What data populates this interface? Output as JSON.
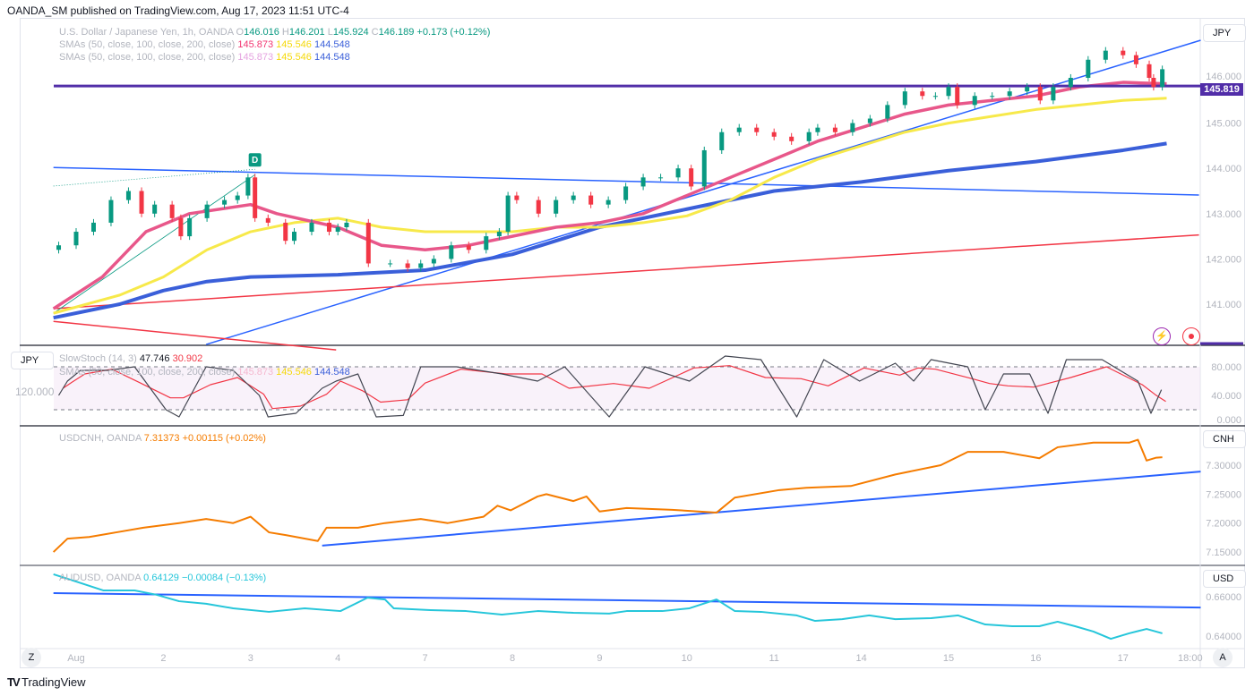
{
  "header": {
    "published": "OANDA_SM published on TradingView.com, Aug 17, 2023 11:51 UTC-4"
  },
  "main_legend": {
    "symbol": "U.S. Dollar / Japanese Yen, 1h, OANDA",
    "o_label": "O",
    "o": "146.016",
    "h_label": "H",
    "h": "146.201",
    "l_label": "L",
    "l": "145.924",
    "c_label": "C",
    "c": "146.189",
    "change": "+0.173 (+0.12%)",
    "sma_label": "SMAs (50, close, 100, close, 200, close)",
    "sma50": "145.873",
    "sma100": "145.546",
    "sma200": "144.548"
  },
  "stoch_legend": {
    "label": "SlowStoch (14, 3)",
    "k": "47.746",
    "d": "30.902",
    "overlay_label": "SMAs (50, close, 100, close, 200, close)",
    "sma50": "145.873",
    "sma100": "145.546",
    "sma200": "144.548",
    "left_value": "120.000"
  },
  "cnh_legend": {
    "label": "USDCNH, OANDA",
    "value": "7.31373",
    "change": "+0.00115 (+0.02%)"
  },
  "aud_legend": {
    "label": "AUDUSD, OANDA",
    "value": "0.64129",
    "change": "−0.00084 (−0.13%)"
  },
  "currencies": {
    "main": "JPY",
    "stoch": "JPY",
    "cnh": "CNH",
    "aud": "USD"
  },
  "price_label": "145.819",
  "marker_label": "D",
  "buttons": {
    "z": "Z",
    "a": "A"
  },
  "footer_logo": "TradingView",
  "colors": {
    "up": "#089981",
    "down": "#f23645",
    "sma50": "#e8578a",
    "sma100": "#f7e94a",
    "sma200": "#3a5fd9",
    "hline": "#512da8",
    "trend_blue": "#2962ff",
    "trend_red": "#f23645",
    "cnh": "#f57c00",
    "aud": "#26c6da"
  },
  "chart_data": [
    {
      "type": "candlestick",
      "title": "USDJPY 1h",
      "yticks": [
        "146.000",
        "145.000",
        "144.000",
        "143.000",
        "142.000",
        "141.000"
      ],
      "ytick_values": [
        146,
        145,
        144,
        143,
        142,
        141
      ],
      "xticks": [
        "Aug",
        "2",
        "3",
        "4",
        "7",
        "8",
        "9",
        "10",
        "11",
        "14",
        "15",
        "16",
        "17",
        "18:00"
      ],
      "xtick_days": [
        0,
        1,
        2,
        3,
        4,
        5,
        6,
        7,
        8,
        9,
        10,
        11,
        12,
        12.77
      ],
      "closes": [
        [
          -0.2,
          142.3
        ],
        [
          0,
          142.6
        ],
        [
          0.2,
          142.8
        ],
        [
          0.4,
          143.3
        ],
        [
          0.6,
          143.5
        ],
        [
          0.75,
          143.0
        ],
        [
          0.9,
          143.2
        ],
        [
          1.1,
          142.9
        ],
        [
          1.2,
          142.5
        ],
        [
          1.3,
          142.9
        ],
        [
          1.5,
          143.2
        ],
        [
          1.7,
          143.3
        ],
        [
          1.85,
          143.4
        ],
        [
          1.97,
          143.8
        ],
        [
          2.05,
          142.9
        ],
        [
          2.2,
          142.8
        ],
        [
          2.4,
          142.4
        ],
        [
          2.5,
          142.6
        ],
        [
          2.7,
          142.8
        ],
        [
          2.9,
          142.6
        ],
        [
          3.0,
          142.7
        ],
        [
          3.1,
          142.8
        ],
        [
          3.35,
          141.9
        ],
        [
          3.6,
          141.9
        ],
        [
          3.8,
          141.8
        ],
        [
          3.95,
          141.9
        ],
        [
          4.1,
          142.0
        ],
        [
          4.3,
          142.3
        ],
        [
          4.5,
          142.2
        ],
        [
          4.7,
          142.5
        ],
        [
          4.85,
          142.6
        ],
        [
          4.95,
          143.4
        ],
        [
          5.05,
          143.3
        ],
        [
          5.3,
          143.0
        ],
        [
          5.5,
          143.3
        ],
        [
          5.7,
          143.4
        ],
        [
          5.9,
          143.2
        ],
        [
          6.1,
          143.3
        ],
        [
          6.3,
          143.6
        ],
        [
          6.5,
          143.8
        ],
        [
          6.7,
          143.8
        ],
        [
          6.9,
          144.0
        ],
        [
          7.05,
          143.6
        ],
        [
          7.2,
          144.4
        ],
        [
          7.4,
          144.8
        ],
        [
          7.6,
          144.9
        ],
        [
          7.8,
          144.8
        ],
        [
          8.0,
          144.7
        ],
        [
          8.2,
          144.6
        ],
        [
          8.4,
          144.8
        ],
        [
          8.5,
          144.9
        ],
        [
          8.7,
          144.8
        ],
        [
          8.9,
          145.0
        ],
        [
          9.1,
          145.1
        ],
        [
          9.3,
          145.4
        ],
        [
          9.5,
          145.7
        ],
        [
          9.7,
          145.6
        ],
        [
          9.85,
          145.6
        ],
        [
          10.0,
          145.8
        ],
        [
          10.1,
          145.4
        ],
        [
          10.3,
          145.6
        ],
        [
          10.5,
          145.6
        ],
        [
          10.7,
          145.7
        ],
        [
          10.9,
          145.8
        ],
        [
          11.05,
          145.5
        ],
        [
          11.2,
          145.8
        ],
        [
          11.4,
          146.0
        ],
        [
          11.6,
          146.4
        ],
        [
          11.8,
          146.6
        ],
        [
          12.0,
          146.5
        ],
        [
          12.15,
          146.3
        ],
        [
          12.3,
          146.0
        ],
        [
          12.35,
          145.8
        ],
        [
          12.45,
          146.19
        ]
      ],
      "sma50": [
        [
          -0.26,
          140.9
        ],
        [
          0.3,
          141.6
        ],
        [
          0.8,
          142.6
        ],
        [
          1.3,
          143.0
        ],
        [
          2.0,
          143.2
        ],
        [
          2.3,
          143.0
        ],
        [
          3.0,
          142.7
        ],
        [
          3.5,
          142.3
        ],
        [
          4.0,
          142.2
        ],
        [
          4.5,
          142.3
        ],
        [
          5.0,
          142.5
        ],
        [
          5.5,
          142.7
        ],
        [
          6.0,
          142.8
        ],
        [
          6.5,
          143.0
        ],
        [
          7.0,
          143.4
        ],
        [
          7.5,
          143.8
        ],
        [
          8.0,
          144.2
        ],
        [
          8.5,
          144.6
        ],
        [
          9.0,
          144.9
        ],
        [
          9.5,
          145.2
        ],
        [
          10.0,
          145.4
        ],
        [
          10.5,
          145.5
        ],
        [
          11.0,
          145.6
        ],
        [
          11.5,
          145.8
        ],
        [
          12.0,
          145.9
        ],
        [
          12.5,
          145.87
        ]
      ],
      "sma100": [
        [
          -0.26,
          140.8
        ],
        [
          0.5,
          141.2
        ],
        [
          1.0,
          141.6
        ],
        [
          1.5,
          142.2
        ],
        [
          2.0,
          142.6
        ],
        [
          2.5,
          142.8
        ],
        [
          3.0,
          142.9
        ],
        [
          3.5,
          142.7
        ],
        [
          4.0,
          142.6
        ],
        [
          4.5,
          142.6
        ],
        [
          5.0,
          142.6
        ],
        [
          5.5,
          142.7
        ],
        [
          6.0,
          142.7
        ],
        [
          6.5,
          142.8
        ],
        [
          7.0,
          142.95
        ],
        [
          7.5,
          143.3
        ],
        [
          8.0,
          143.8
        ],
        [
          8.5,
          144.2
        ],
        [
          9.0,
          144.5
        ],
        [
          9.5,
          144.8
        ],
        [
          10.0,
          145.0
        ],
        [
          10.5,
          145.15
        ],
        [
          11.0,
          145.3
        ],
        [
          11.5,
          145.4
        ],
        [
          12.0,
          145.5
        ],
        [
          12.5,
          145.55
        ]
      ],
      "sma200": [
        [
          -0.26,
          140.7
        ],
        [
          0.5,
          141.0
        ],
        [
          1.0,
          141.3
        ],
        [
          1.5,
          141.5
        ],
        [
          2.0,
          141.6
        ],
        [
          3.0,
          141.65
        ],
        [
          4.0,
          141.75
        ],
        [
          5.0,
          142.1
        ],
        [
          6.0,
          142.7
        ],
        [
          7.0,
          143.1
        ],
        [
          7.5,
          143.3
        ],
        [
          8.0,
          143.5
        ],
        [
          9.0,
          143.7
        ],
        [
          10.0,
          143.95
        ],
        [
          11.0,
          144.15
        ],
        [
          12.0,
          144.4
        ],
        [
          12.5,
          144.55
        ]
      ],
      "hline": 145.819,
      "trendlines": [
        {
          "color": "blue",
          "from": [
            -0.26,
            144.02
          ],
          "to": [
            12.87,
            143.41
          ]
        },
        {
          "color": "blue",
          "from": [
            1.49,
            140.11
          ],
          "to": [
            12.89,
            146.83
          ]
        },
        {
          "color": "red",
          "from": [
            -0.26,
            140.9
          ],
          "to": [
            12.87,
            142.53
          ]
        },
        {
          "color": "red",
          "from": [
            -0.26,
            140.62
          ],
          "to": [
            2.98,
            139.99
          ]
        },
        {
          "color": "green",
          "from": [
            -0.26,
            140.8
          ],
          "to": [
            2.05,
            143.86
          ]
        },
        {
          "color": "green-dotted",
          "from": [
            -0.26,
            143.61
          ],
          "to": [
            2.05,
            143.98
          ]
        }
      ],
      "marker": {
        "day": 2.05,
        "price": 144.0
      }
    },
    {
      "type": "line",
      "title": "SlowStoch (14, 3)",
      "yticks": [
        "80.000",
        "40.000",
        "0.000"
      ],
      "ytick_values": [
        80,
        40,
        0
      ],
      "bands": [
        80,
        20
      ],
      "k": [
        [
          -0.2,
          40
        ],
        [
          -0.1,
          60
        ],
        [
          0.05,
          75
        ],
        [
          0.36,
          75
        ],
        [
          0.67,
          80
        ],
        [
          1.03,
          20
        ],
        [
          1.18,
          10
        ],
        [
          1.49,
          80
        ],
        [
          1.8,
          75
        ],
        [
          2.1,
          40
        ],
        [
          2.2,
          10
        ],
        [
          2.52,
          15
        ],
        [
          2.82,
          50
        ],
        [
          2.98,
          60
        ],
        [
          3.23,
          70
        ],
        [
          3.44,
          10
        ],
        [
          3.75,
          12
        ],
        [
          3.95,
          80
        ],
        [
          4.36,
          80
        ],
        [
          4.88,
          70
        ],
        [
          5.29,
          60
        ],
        [
          5.6,
          80
        ],
        [
          6.11,
          10
        ],
        [
          6.52,
          80
        ],
        [
          7.03,
          60
        ],
        [
          7.44,
          95
        ],
        [
          7.85,
          90
        ],
        [
          8.26,
          10
        ],
        [
          8.57,
          90
        ],
        [
          8.98,
          60
        ],
        [
          9.39,
          85
        ],
        [
          9.6,
          60
        ],
        [
          9.8,
          90
        ],
        [
          10.22,
          80
        ],
        [
          10.42,
          20
        ],
        [
          10.63,
          70
        ],
        [
          10.93,
          70
        ],
        [
          11.14,
          15
        ],
        [
          11.35,
          90
        ],
        [
          11.76,
          90
        ],
        [
          12.17,
          60
        ],
        [
          12.32,
          15
        ],
        [
          12.44,
          48
        ]
      ]
    },
    {
      "type": "line",
      "title": "USDCNH",
      "yticks": [
        "7.30000",
        "7.25000",
        "7.20000",
        "7.15000"
      ],
      "ytick_values": [
        7.3,
        7.25,
        7.2,
        7.15
      ],
      "values": [
        [
          -0.26,
          7.15
        ],
        [
          -0.1,
          7.173
        ],
        [
          0.15,
          7.176
        ],
        [
          0.46,
          7.184
        ],
        [
          0.77,
          7.192
        ],
        [
          1.18,
          7.2
        ],
        [
          1.49,
          7.207
        ],
        [
          1.8,
          7.2
        ],
        [
          2.0,
          7.211
        ],
        [
          2.21,
          7.184
        ],
        [
          2.41,
          7.179
        ],
        [
          2.77,
          7.169
        ],
        [
          2.87,
          7.192
        ],
        [
          3.23,
          7.192
        ],
        [
          3.54,
          7.2
        ],
        [
          3.95,
          7.207
        ],
        [
          4.26,
          7.2
        ],
        [
          4.67,
          7.211
        ],
        [
          4.83,
          7.23
        ],
        [
          4.98,
          7.222
        ],
        [
          5.29,
          7.246
        ],
        [
          5.39,
          7.25
        ],
        [
          5.7,
          7.238
        ],
        [
          5.85,
          7.246
        ],
        [
          6.0,
          7.22
        ],
        [
          6.31,
          7.226
        ],
        [
          6.83,
          7.223
        ],
        [
          7.34,
          7.218
        ],
        [
          7.55,
          7.244
        ],
        [
          8.06,
          7.257
        ],
        [
          8.37,
          7.261
        ],
        [
          8.88,
          7.264
        ],
        [
          9.39,
          7.284
        ],
        [
          9.91,
          7.3
        ],
        [
          10.22,
          7.323
        ],
        [
          10.63,
          7.323
        ],
        [
          11.04,
          7.312
        ],
        [
          11.25,
          7.331
        ],
        [
          11.66,
          7.339
        ],
        [
          12.07,
          7.339
        ],
        [
          12.17,
          7.344
        ],
        [
          12.27,
          7.308
        ],
        [
          12.38,
          7.313
        ],
        [
          12.45,
          7.3137
        ]
      ],
      "trendline": {
        "from": [
          2.82,
          7.161
        ],
        "to": [
          12.89,
          7.289
        ]
      }
    },
    {
      "type": "line",
      "title": "AUDUSD",
      "yticks": [
        "0.66000",
        "0.64000"
      ],
      "ytick_values": [
        0.66,
        0.64
      ],
      "values": [
        [
          -0.26,
          0.6714
        ],
        [
          0,
          0.6677
        ],
        [
          0.31,
          0.6632
        ],
        [
          0.67,
          0.6632
        ],
        [
          0.92,
          0.661
        ],
        [
          1.18,
          0.6577
        ],
        [
          1.49,
          0.6564
        ],
        [
          1.8,
          0.6541
        ],
        [
          2.21,
          0.6523
        ],
        [
          2.62,
          0.6541
        ],
        [
          3.03,
          0.6527
        ],
        [
          3.34,
          0.6595
        ],
        [
          3.54,
          0.6586
        ],
        [
          3.64,
          0.6541
        ],
        [
          4.06,
          0.6532
        ],
        [
          4.47,
          0.6527
        ],
        [
          4.88,
          0.6509
        ],
        [
          5.29,
          0.6527
        ],
        [
          5.7,
          0.6518
        ],
        [
          6.11,
          0.6514
        ],
        [
          6.31,
          0.6527
        ],
        [
          6.72,
          0.6527
        ],
        [
          7.03,
          0.6541
        ],
        [
          7.34,
          0.6586
        ],
        [
          7.55,
          0.6527
        ],
        [
          7.85,
          0.6523
        ],
        [
          8.26,
          0.6505
        ],
        [
          8.47,
          0.6477
        ],
        [
          8.78,
          0.6486
        ],
        [
          9.09,
          0.6505
        ],
        [
          9.39,
          0.6486
        ],
        [
          9.8,
          0.6491
        ],
        [
          10.11,
          0.6505
        ],
        [
          10.42,
          0.6459
        ],
        [
          10.73,
          0.645
        ],
        [
          11.04,
          0.645
        ],
        [
          11.25,
          0.6473
        ],
        [
          11.45,
          0.645
        ],
        [
          11.66,
          0.6423
        ],
        [
          11.86,
          0.6386
        ],
        [
          12.07,
          0.6414
        ],
        [
          12.27,
          0.6436
        ],
        [
          12.45,
          0.6414
        ]
      ],
      "trendline": {
        "from": [
          -0.26,
          0.6618
        ],
        "to": [
          12.89,
          0.6545
        ]
      }
    }
  ]
}
